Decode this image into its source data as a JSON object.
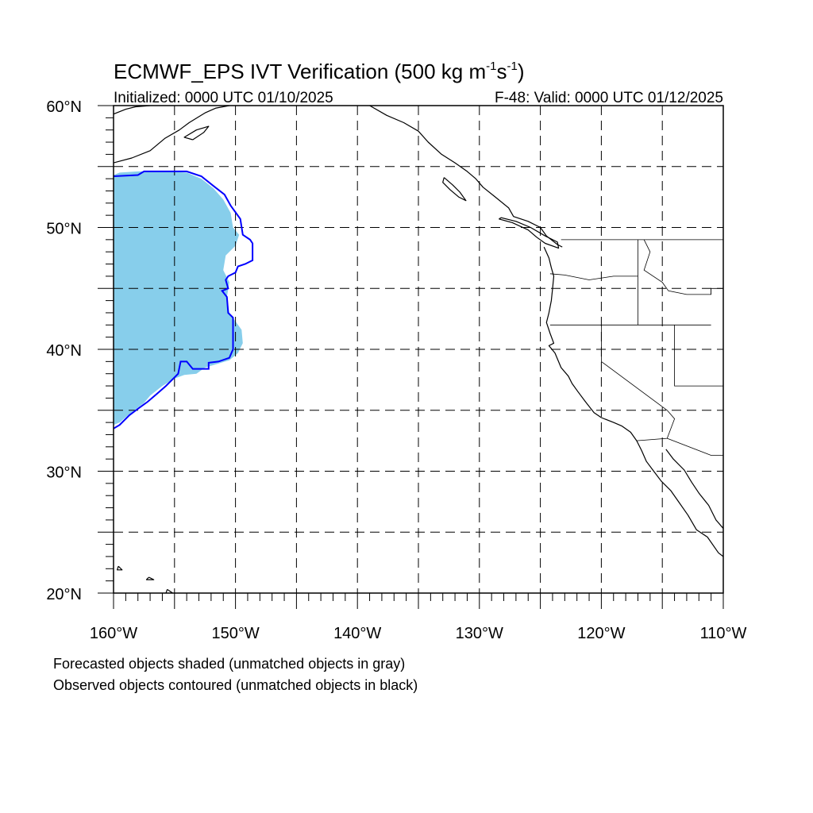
{
  "title": {
    "main": "ECMWF_EPS IVT Verification (500 kg m",
    "exp1": "-1",
    "mid": "s",
    "exp2": "-1",
    "tail": ")"
  },
  "subtitle_left": "Initialized: 0000 UTC 01/10/2025",
  "subtitle_right": "F-48: Valid: 0000 UTC 01/12/2025",
  "map": {
    "lon_range": [
      -160,
      -110
    ],
    "lat_range": [
      20,
      60
    ],
    "lon_labels": [
      {
        "lon": -160,
        "text": "160°W"
      },
      {
        "lon": -150,
        "text": "150°W"
      },
      {
        "lon": -140,
        "text": "140°W"
      },
      {
        "lon": -130,
        "text": "130°W"
      },
      {
        "lon": -120,
        "text": "120°W"
      },
      {
        "lon": -110,
        "text": "110°W"
      }
    ],
    "lat_labels": [
      {
        "lat": 60,
        "text": "60°N"
      },
      {
        "lat": 50,
        "text": "50°N"
      },
      {
        "lat": 40,
        "text": "40°N"
      },
      {
        "lat": 30,
        "text": "30°N"
      },
      {
        "lat": 20,
        "text": "20°N"
      }
    ],
    "grid_lons": [
      -155,
      -150,
      -145,
      -140,
      -135,
      -130,
      -125,
      -120,
      -115
    ],
    "grid_lats": [
      25,
      30,
      35,
      40,
      45,
      50,
      55
    ],
    "colors": {
      "forecast_fill": "#87ceeb",
      "observed_contour": "#0000ff",
      "coastline": "#000000",
      "grid": "#000000"
    },
    "forecast_object": [
      [
        -160,
        54.3
      ],
      [
        -159.5,
        54.5
      ],
      [
        -158,
        54.6
      ],
      [
        -156,
        54.6
      ],
      [
        -154,
        54.5
      ],
      [
        -152.8,
        54
      ],
      [
        -151.8,
        53.2
      ],
      [
        -151,
        52.3
      ],
      [
        -150.4,
        51.2
      ],
      [
        -150.2,
        50
      ],
      [
        -149.7,
        49.4
      ],
      [
        -150,
        48.5
      ],
      [
        -150.8,
        47.7
      ],
      [
        -151,
        46.5
      ],
      [
        -150.5,
        45.5
      ],
      [
        -150.7,
        44.3
      ],
      [
        -150.5,
        43
      ],
      [
        -150,
        42.3
      ],
      [
        -149.5,
        41.6
      ],
      [
        -149.4,
        40.5
      ],
      [
        -149.8,
        39.7
      ],
      [
        -150.5,
        39.1
      ],
      [
        -151.5,
        38.8
      ],
      [
        -152.5,
        38.5
      ],
      [
        -153.2,
        38
      ],
      [
        -154.2,
        37.9
      ],
      [
        -155,
        37.6
      ],
      [
        -156,
        37
      ],
      [
        -157,
        36.2
      ],
      [
        -157.5,
        35.6
      ],
      [
        -158.3,
        35
      ],
      [
        -158.8,
        34.6
      ],
      [
        -159.5,
        34
      ],
      [
        -160,
        33.8
      ]
    ],
    "observed_object": [
      [
        -160,
        54.2
      ],
      [
        -158,
        54.3
      ],
      [
        -157.5,
        54.6
      ],
      [
        -155.5,
        54.6
      ],
      [
        -154,
        54.6
      ],
      [
        -152.8,
        54.2
      ],
      [
        -151.8,
        53.4
      ],
      [
        -150.9,
        52.7
      ],
      [
        -150.4,
        51.8
      ],
      [
        -149.6,
        50.7
      ],
      [
        -149.4,
        49.4
      ],
      [
        -148.8,
        49
      ],
      [
        -148.6,
        48.7
      ],
      [
        -148.6,
        47.3
      ],
      [
        -149.2,
        47
      ],
      [
        -149.8,
        46.8
      ],
      [
        -150,
        46.3
      ],
      [
        -150.6,
        46
      ],
      [
        -150.8,
        45.7
      ],
      [
        -150.6,
        45
      ],
      [
        -151.1,
        44.8
      ],
      [
        -150.7,
        44.3
      ],
      [
        -150.6,
        43
      ],
      [
        -150.2,
        42.6
      ],
      [
        -150.2,
        41
      ],
      [
        -150.2,
        40
      ],
      [
        -150.5,
        39.3
      ],
      [
        -151.4,
        39
      ],
      [
        -152.2,
        38.9
      ],
      [
        -152.2,
        38.4
      ],
      [
        -153.5,
        38.4
      ],
      [
        -154,
        39
      ],
      [
        -154.5,
        39
      ],
      [
        -154.7,
        38
      ],
      [
        -155.2,
        37.5
      ],
      [
        -155.7,
        37
      ],
      [
        -156.5,
        36.3
      ],
      [
        -157.2,
        35.7
      ],
      [
        -157.9,
        35.2
      ],
      [
        -158.7,
        34.6
      ],
      [
        -159.5,
        33.8
      ],
      [
        -160,
        33.5
      ]
    ],
    "coastlines": [
      [
        [
          -160,
          55.3
        ],
        [
          -158.5,
          55.7
        ],
        [
          -157,
          56.3
        ],
        [
          -155.8,
          57.3
        ],
        [
          -154.6,
          58
        ],
        [
          -153.8,
          58.6
        ],
        [
          -152.5,
          59.4
        ],
        [
          -151.6,
          59.8
        ],
        [
          -150.5,
          60
        ]
      ],
      [
        [
          -160,
          59.3
        ],
        [
          -159,
          59.7
        ],
        [
          -158.2,
          59.9
        ],
        [
          -157,
          60
        ]
      ],
      [
        [
          -153.5,
          57.2
        ],
        [
          -152.6,
          57.8
        ],
        [
          -152.2,
          58.3
        ],
        [
          -153.2,
          58.0
        ],
        [
          -154.2,
          57.4
        ],
        [
          -153.5,
          57.2
        ]
      ],
      [
        [
          -139,
          60
        ],
        [
          -137.6,
          59.2
        ],
        [
          -136.2,
          58.6
        ],
        [
          -135,
          57.9
        ],
        [
          -134.2,
          57
        ],
        [
          -133.1,
          56
        ],
        [
          -132,
          55.3
        ],
        [
          -131,
          54.6
        ],
        [
          -130.3,
          54
        ],
        [
          -129.7,
          53.3
        ],
        [
          -128.7,
          52.5
        ],
        [
          -127.6,
          51.6
        ],
        [
          -127.2,
          50.9
        ],
        [
          -126,
          50.5
        ],
        [
          -125,
          50
        ],
        [
          -124.5,
          49.3
        ],
        [
          -123.6,
          48.6
        ],
        [
          -123.2,
          48.4
        ]
      ],
      [
        [
          -132.9,
          54.1
        ],
        [
          -132.2,
          53.5
        ],
        [
          -131.6,
          52.9
        ],
        [
          -131.1,
          52.2
        ],
        [
          -131.7,
          52.5
        ],
        [
          -132.4,
          53.1
        ],
        [
          -133.0,
          53.7
        ],
        [
          -132.9,
          54.1
        ]
      ],
      [
        [
          -128.4,
          50.7
        ],
        [
          -127.3,
          50.4
        ],
        [
          -126,
          49.8
        ],
        [
          -125.3,
          49.2
        ],
        [
          -124.6,
          48.7
        ],
        [
          -123.5,
          48.3
        ],
        [
          -123.6,
          48.8
        ],
        [
          -124.6,
          49.3
        ],
        [
          -125.8,
          50
        ],
        [
          -127,
          50.5
        ],
        [
          -128.2,
          50.8
        ],
        [
          -128.4,
          50.7
        ]
      ],
      [
        [
          -124.7,
          48.4
        ],
        [
          -124.3,
          47.5
        ],
        [
          -124.1,
          46.7
        ],
        [
          -123.9,
          46
        ],
        [
          -124,
          45
        ],
        [
          -124.1,
          44
        ],
        [
          -124.3,
          43
        ],
        [
          -124.5,
          42.2
        ],
        [
          -124.2,
          41.3
        ],
        [
          -123.9,
          40.5
        ],
        [
          -124.3,
          40.3
        ],
        [
          -123.8,
          39.7
        ],
        [
          -123.3,
          38.5
        ],
        [
          -122.7,
          37.8
        ],
        [
          -122.4,
          37.2
        ],
        [
          -121.9,
          36.5
        ],
        [
          -121.3,
          35.7
        ],
        [
          -120.6,
          34.8
        ],
        [
          -120,
          34.4
        ],
        [
          -119,
          34
        ],
        [
          -118.3,
          33.7
        ],
        [
          -117.6,
          33.2
        ],
        [
          -117.1,
          32.5
        ],
        [
          -116.7,
          31.7
        ],
        [
          -116.3,
          30.8
        ],
        [
          -115.7,
          30
        ],
        [
          -115.1,
          29.2
        ],
        [
          -114.3,
          28.4
        ],
        [
          -113.6,
          27.4
        ],
        [
          -112.9,
          26.4
        ],
        [
          -112.2,
          25.2
        ],
        [
          -111.3,
          24.6
        ],
        [
          -110.4,
          23.3
        ],
        [
          -110,
          23
        ]
      ],
      [
        [
          -114.7,
          31.8
        ],
        [
          -114.1,
          31
        ],
        [
          -113.2,
          30.1
        ],
        [
          -112.6,
          29.1
        ],
        [
          -112,
          28.2
        ],
        [
          -111.2,
          27.2
        ],
        [
          -110.6,
          26
        ],
        [
          -110,
          25.3
        ]
      ],
      [
        [
          -157.1,
          21.3
        ],
        [
          -156.7,
          21.1
        ],
        [
          -157.3,
          21.1
        ],
        [
          -157.1,
          21.3
        ]
      ],
      [
        [
          -155.6,
          20.3
        ],
        [
          -155,
          19.9
        ],
        [
          -155.8,
          19.7
        ],
        [
          -155.6,
          20.3
        ]
      ],
      [
        [
          -159.6,
          22.2
        ],
        [
          -159.3,
          21.9
        ],
        [
          -159.7,
          21.9
        ],
        [
          -159.6,
          22.2
        ]
      ]
    ],
    "borders": [
      [
        [
          -123.3,
          49
        ],
        [
          -110,
          49
        ]
      ],
      [
        [
          -124.2,
          46.2
        ],
        [
          -123,
          46.1
        ],
        [
          -121,
          45.7
        ],
        [
          -119,
          46
        ],
        [
          -117,
          46
        ]
      ],
      [
        [
          -117,
          49
        ],
        [
          -117,
          42
        ]
      ],
      [
        [
          -124.2,
          42
        ],
        [
          -111,
          42
        ]
      ],
      [
        [
          -120,
          42
        ],
        [
          -120,
          39
        ],
        [
          -114.6,
          35
        ]
      ],
      [
        [
          -114.6,
          35
        ],
        [
          -114,
          34.3
        ],
        [
          -114.6,
          32.7
        ],
        [
          -117.1,
          32.5
        ]
      ],
      [
        [
          -114.6,
          32.7
        ],
        [
          -111,
          31.3
        ],
        [
          -110,
          31.3
        ]
      ],
      [
        [
          -114,
          42
        ],
        [
          -114,
          37
        ],
        [
          -110,
          37
        ]
      ],
      [
        [
          -111,
          45
        ],
        [
          -111,
          44.5
        ]
      ],
      [
        [
          -116.5,
          49
        ],
        [
          -116,
          48
        ],
        [
          -116.5,
          46.5
        ],
        [
          -115,
          45.5
        ],
        [
          -114.5,
          44.8
        ],
        [
          -113,
          44.5
        ],
        [
          -111,
          44.5
        ],
        [
          -111,
          45
        ],
        [
          -110,
          45
        ]
      ]
    ]
  },
  "captions": {
    "forecast": "Forecasted objects shaded (unmatched objects in gray)",
    "observed": "Observed objects contoured (unmatched objects in black)"
  }
}
